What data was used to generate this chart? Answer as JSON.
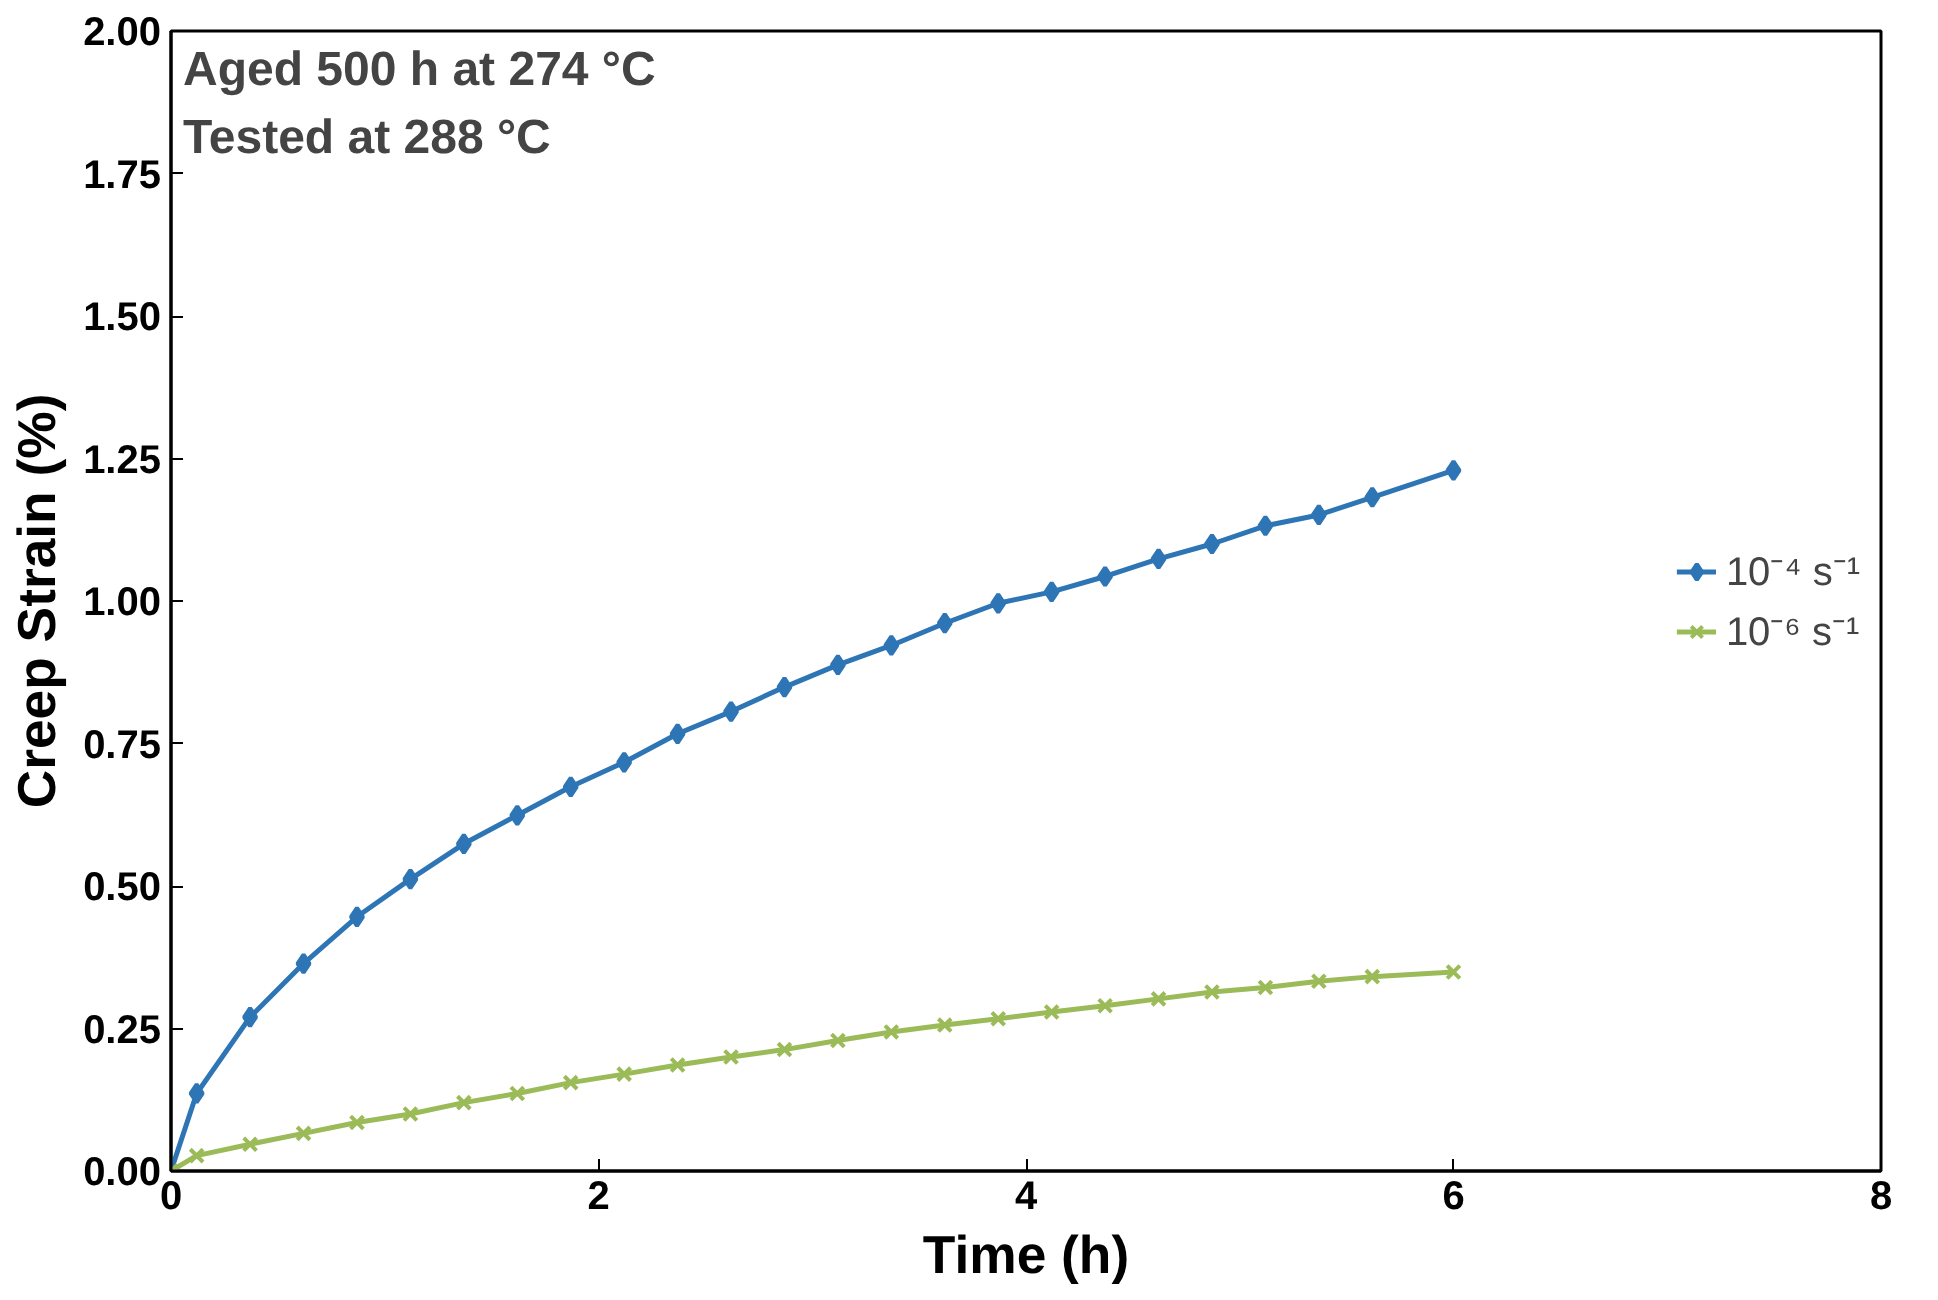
{
  "chart_data": {
    "type": "line",
    "xlabel": "Time (h)",
    "ylabel": "Creep Strain (%)",
    "annotations": [
      "Aged 500 h at 274 °C",
      "Tested at 288 °C"
    ],
    "xlim": [
      0,
      8
    ],
    "xticks": [
      0,
      2,
      4,
      6,
      8
    ],
    "ylim": [
      0,
      2
    ],
    "yticks": [
      {
        "value": 0,
        "label": "0.00"
      },
      {
        "value": 0.25,
        "label": "0.25"
      },
      {
        "value": 0.5,
        "label": "0.50"
      },
      {
        "value": 0.75,
        "label": "0.75"
      },
      {
        "value": 1,
        "label": "1.00"
      },
      {
        "value": 1.25,
        "label": "1.25"
      },
      {
        "value": 1.5,
        "label": "1.50"
      },
      {
        "value": 1.75,
        "label": "1.75"
      },
      {
        "value": 2,
        "label": "2.00"
      }
    ],
    "grid": false,
    "legend": "right",
    "series": [
      {
        "name": "10⁻⁴ s⁻¹",
        "color": "#2e75b6",
        "marker": "diamond",
        "x": [
          0,
          0.12,
          0.37,
          0.62,
          0.87,
          1.12,
          1.37,
          1.62,
          1.87,
          2.12,
          2.37,
          2.62,
          2.87,
          3.12,
          3.37,
          3.62,
          3.87,
          4.12,
          4.37,
          4.62,
          4.87,
          5.12,
          5.37,
          5.62,
          6.0
        ],
        "values": [
          0,
          0.136,
          0.27,
          0.364,
          0.446,
          0.512,
          0.574,
          0.624,
          0.674,
          0.717,
          0.767,
          0.806,
          0.849,
          0.888,
          0.922,
          0.961,
          0.996,
          1.016,
          1.043,
          1.074,
          1.1,
          1.132,
          1.151,
          1.182,
          1.229
        ]
      },
      {
        "name": "10⁻⁶ s⁻¹",
        "color": "#9bbb59",
        "marker": "cross",
        "x": [
          0,
          0.12,
          0.37,
          0.62,
          0.87,
          1.12,
          1.37,
          1.62,
          1.87,
          2.12,
          2.37,
          2.62,
          2.87,
          3.12,
          3.37,
          3.62,
          3.87,
          4.12,
          4.37,
          4.62,
          4.87,
          5.12,
          5.37,
          5.62,
          6.0
        ],
        "values": [
          0,
          0.027,
          0.047,
          0.066,
          0.085,
          0.1,
          0.12,
          0.136,
          0.155,
          0.17,
          0.186,
          0.2,
          0.213,
          0.229,
          0.244,
          0.256,
          0.267,
          0.279,
          0.29,
          0.302,
          0.314,
          0.322,
          0.333,
          0.341,
          0.349
        ]
      }
    ]
  }
}
